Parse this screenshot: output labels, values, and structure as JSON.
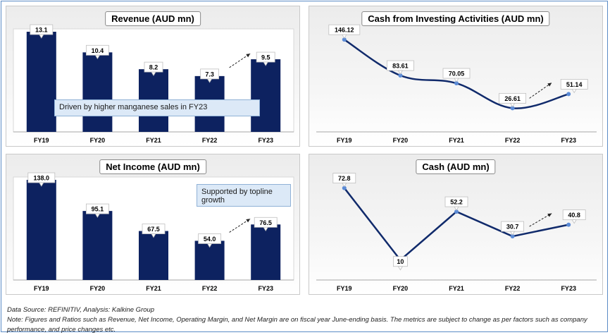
{
  "footer": {
    "source": "Data Source: REFINITIV, Analysis: Kalkine Group",
    "note": "Note: Figures and Ratios such as Revenue, Net Income, Operating Margin, and Net Margin are on fiscal year June-ending basis. The metrics are subject to change as per factors such as company performance, and price changes etc."
  },
  "colors": {
    "bar": "#0d2260",
    "line": "#102a6b",
    "marker": "#5b8bd6",
    "callout": "#dce9f7"
  },
  "chart_data": [
    {
      "id": "revenue",
      "type": "bar",
      "title": "Revenue (AUD mn)",
      "categories": [
        "FY19",
        "FY20",
        "FY21",
        "FY22",
        "FY23"
      ],
      "values": [
        13.1,
        10.4,
        8.2,
        7.3,
        9.5
      ],
      "value_labels": [
        "13.1",
        "10.4",
        "8.2",
        "7.3",
        "9.5"
      ],
      "ylim": [
        0,
        13.1
      ],
      "callout": "Driven by higher manganese sales in FY23"
    },
    {
      "id": "cash-investing",
      "type": "line",
      "title": "Cash from Investing Activities (AUD mn)",
      "categories": [
        "FY19",
        "FY20",
        "FY21",
        "FY22",
        "FY23"
      ],
      "values": [
        146.12,
        83.61,
        70.05,
        26.61,
        51.14
      ],
      "value_labels": [
        "146.12",
        "83.61",
        "70.05",
        "26.61",
        "51.14"
      ],
      "ylim": [
        0,
        150
      ]
    },
    {
      "id": "net-income",
      "type": "bar",
      "title": "Net Income (AUD mn)",
      "categories": [
        "FY19",
        "FY20",
        "FY21",
        "FY22",
        "FY23"
      ],
      "values": [
        138.0,
        95.1,
        67.5,
        54.0,
        76.5
      ],
      "value_labels": [
        "138.0",
        "95.1",
        "67.5",
        "54.0",
        "76.5"
      ],
      "ylim": [
        0,
        138
      ],
      "callout": "Supported by topline growth"
    },
    {
      "id": "cash",
      "type": "line",
      "title": "Cash (AUD mn)",
      "categories": [
        "FY19",
        "FY20",
        "FY21",
        "FY22",
        "FY23"
      ],
      "values": [
        72.8,
        10,
        52.2,
        30.7,
        40.8
      ],
      "value_labels": [
        "72.8",
        "10",
        "52.2",
        "30.7",
        "40.8"
      ],
      "ylim": [
        0,
        75
      ]
    }
  ]
}
